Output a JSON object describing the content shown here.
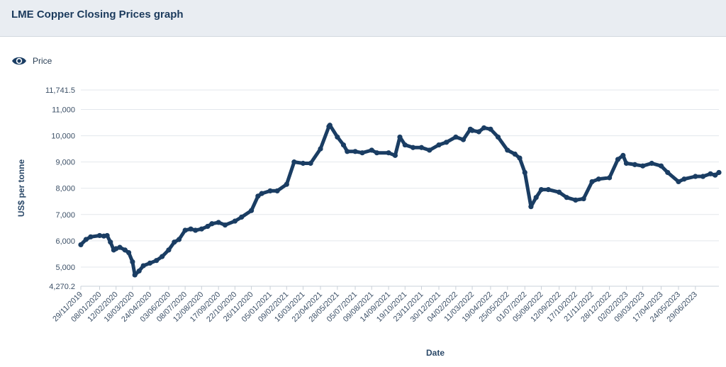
{
  "header": {
    "title": "LME Copper Closing Prices graph"
  },
  "legend": {
    "icon": "eye-icon",
    "label": "Price"
  },
  "colors": {
    "series": "#1a3d63",
    "header_bg": "#e9edf2",
    "grid": "#e3e7ec"
  },
  "chart_data": {
    "type": "line",
    "title": "",
    "xlabel": "Date",
    "ylabel": "US$ per tonne",
    "ylim": [
      4270.2,
      11741.5
    ],
    "yticks": [
      4270.2,
      5000,
      6000,
      7000,
      8000,
      9000,
      10000,
      11000,
      11741.5
    ],
    "ytick_labels": [
      "4,270.2",
      "5,000",
      "6,000",
      "7,000",
      "8,000",
      "9,000",
      "10,000",
      "11,000",
      "11,741.5"
    ],
    "xlim": [
      "2019-11-29",
      "2023-08-18"
    ],
    "xticks": [
      "2019-11-29",
      "2020-01-08",
      "2020-02-12",
      "2020-03-18",
      "2020-04-24",
      "2020-06-03",
      "2020-07-08",
      "2020-08-12",
      "2020-09-17",
      "2020-10-22",
      "2020-11-26",
      "2021-01-05",
      "2021-02-09",
      "2021-03-16",
      "2021-04-22",
      "2021-05-28",
      "2021-07-05",
      "2021-08-09",
      "2021-09-14",
      "2021-10-19",
      "2021-11-23",
      "2021-12-30",
      "2022-02-04",
      "2022-03-11",
      "2022-04-19",
      "2022-05-25",
      "2022-07-01",
      "2022-08-05",
      "2022-09-12",
      "2022-10-17",
      "2022-11-21",
      "2022-12-28",
      "2023-02-02",
      "2023-03-09",
      "2023-04-17",
      "2023-05-24",
      "2023-06-29"
    ],
    "xtick_labels": [
      "29/11/2019",
      "08/01/2020",
      "12/02/2020",
      "18/03/2020",
      "24/04/2020",
      "03/06/2020",
      "08/07/2020",
      "12/08/2020",
      "17/09/2020",
      "22/10/2020",
      "26/11/2020",
      "05/01/2021",
      "09/02/2021",
      "16/03/2021",
      "22/04/2021",
      "28/05/2021",
      "05/07/2021",
      "09/08/2021",
      "14/09/2021",
      "19/10/2021",
      "23/11/2021",
      "30/12/2021",
      "04/02/2022",
      "11/03/2022",
      "19/04/2022",
      "25/05/2022",
      "01/07/2022",
      "05/08/2022",
      "12/09/2022",
      "17/10/2022",
      "21/11/2022",
      "28/12/2022",
      "02/02/2023",
      "09/03/2023",
      "17/04/2023",
      "24/05/2023",
      "29/06/2023"
    ],
    "legend": "top-left",
    "grid": true,
    "series": [
      {
        "name": "Price",
        "x": [
          "2019-11-29",
          "2019-12-10",
          "2019-12-20",
          "2020-01-08",
          "2020-01-17",
          "2020-01-24",
          "2020-01-31",
          "2020-02-07",
          "2020-02-12",
          "2020-02-20",
          "2020-03-02",
          "2020-03-10",
          "2020-03-18",
          "2020-03-23",
          "2020-04-01",
          "2020-04-10",
          "2020-04-24",
          "2020-05-08",
          "2020-05-20",
          "2020-06-03",
          "2020-06-15",
          "2020-06-25",
          "2020-07-08",
          "2020-07-20",
          "2020-07-30",
          "2020-08-12",
          "2020-08-25",
          "2020-09-03",
          "2020-09-17",
          "2020-10-01",
          "2020-10-22",
          "2020-11-05",
          "2020-11-26",
          "2020-12-10",
          "2020-12-18",
          "2021-01-05",
          "2021-01-20",
          "2021-02-09",
          "2021-02-25",
          "2021-03-16",
          "2021-04-01",
          "2021-04-22",
          "2021-05-10",
          "2021-05-12",
          "2021-05-28",
          "2021-06-10",
          "2021-06-18",
          "2021-07-05",
          "2021-07-20",
          "2021-08-09",
          "2021-08-20",
          "2021-09-14",
          "2021-09-28",
          "2021-10-08",
          "2021-10-19",
          "2021-11-05",
          "2021-11-23",
          "2021-12-10",
          "2021-12-30",
          "2022-01-15",
          "2022-02-04",
          "2022-02-20",
          "2022-03-07",
          "2022-03-11",
          "2022-03-25",
          "2022-04-05",
          "2022-04-19",
          "2022-05-05",
          "2022-05-25",
          "2022-06-10",
          "2022-06-20",
          "2022-07-01",
          "2022-07-14",
          "2022-07-25",
          "2022-08-05",
          "2022-08-20",
          "2022-09-12",
          "2022-09-28",
          "2022-10-17",
          "2022-11-03",
          "2022-11-21",
          "2022-12-05",
          "2022-12-28",
          "2023-01-15",
          "2023-01-26",
          "2023-02-02",
          "2023-02-20",
          "2023-03-09",
          "2023-03-28",
          "2023-04-17",
          "2023-05-01",
          "2023-05-24",
          "2023-06-05",
          "2023-06-29",
          "2023-07-15",
          "2023-07-31",
          "2023-08-10",
          "2023-08-18"
        ],
        "values": [
          5850,
          6050,
          6150,
          6200,
          6180,
          6200,
          5950,
          5650,
          5700,
          5750,
          5650,
          5550,
          5200,
          4700,
          4850,
          5050,
          5150,
          5250,
          5400,
          5650,
          5950,
          6050,
          6400,
          6450,
          6400,
          6450,
          6550,
          6650,
          6700,
          6600,
          6750,
          6900,
          7150,
          7700,
          7800,
          7900,
          7900,
          8150,
          9000,
          8950,
          8950,
          9500,
          10350,
          10400,
          9950,
          9650,
          9400,
          9400,
          9350,
          9450,
          9350,
          9350,
          9250,
          9950,
          9650,
          9550,
          9550,
          9450,
          9650,
          9750,
          9950,
          9850,
          10250,
          10200,
          10150,
          10300,
          10250,
          9950,
          9450,
          9300,
          9150,
          8600,
          7300,
          7650,
          7950,
          7950,
          7850,
          7650,
          7550,
          7600,
          8250,
          8350,
          8400,
          9100,
          9250,
          8950,
          8900,
          8850,
          8950,
          8850,
          8600,
          8250,
          8350,
          8450,
          8450,
          8550,
          8500,
          8600
        ]
      }
    ]
  }
}
